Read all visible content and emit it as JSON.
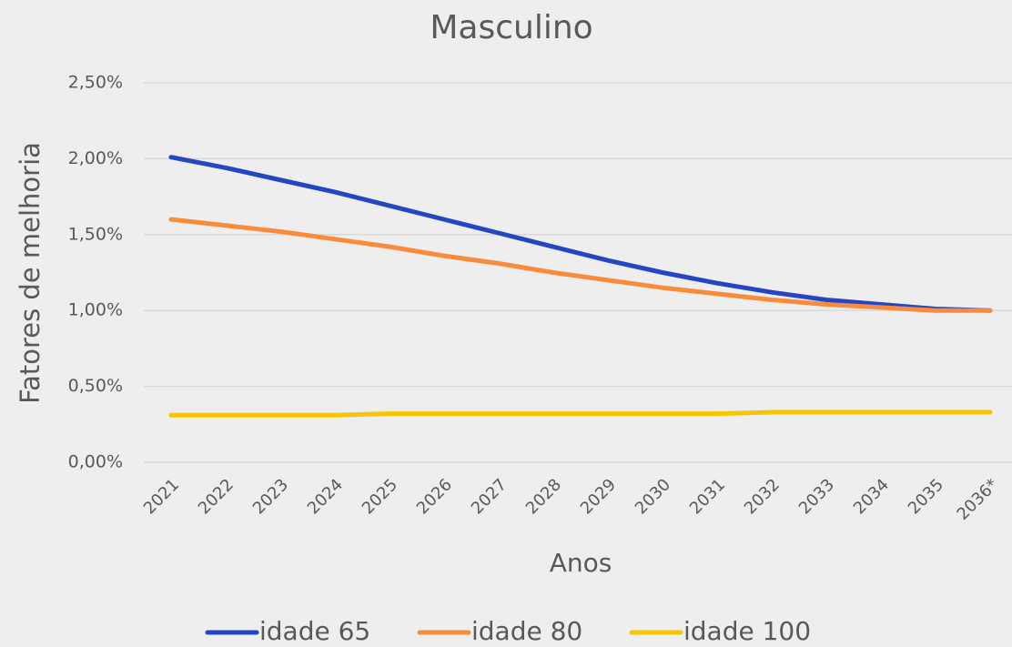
{
  "chart_data": {
    "type": "line",
    "title": "Masculino",
    "x_label": "Anos",
    "y_label": "Fatores de melhoria",
    "categories": [
      "2021",
      "2022",
      "2023",
      "2024",
      "2025",
      "2026",
      "2027",
      "2028",
      "2029",
      "2030",
      "2031",
      "2032",
      "2033",
      "2034",
      "2035",
      "2036*"
    ],
    "series": [
      {
        "name": "idade 65",
        "color": "#2446c4",
        "values": [
          2.01,
          1.94,
          1.86,
          1.78,
          1.69,
          1.6,
          1.51,
          1.42,
          1.33,
          1.25,
          1.18,
          1.12,
          1.07,
          1.04,
          1.01,
          1.0
        ]
      },
      {
        "name": "idade 80",
        "color": "#f98b3a",
        "values": [
          1.6,
          1.56,
          1.52,
          1.47,
          1.42,
          1.36,
          1.31,
          1.25,
          1.2,
          1.15,
          1.11,
          1.07,
          1.04,
          1.02,
          1.0,
          1.0
        ]
      },
      {
        "name": "idade 100",
        "color": "#f7c600",
        "values": [
          0.31,
          0.31,
          0.31,
          0.31,
          0.32,
          0.32,
          0.32,
          0.32,
          0.32,
          0.32,
          0.32,
          0.33,
          0.33,
          0.33,
          0.33,
          0.33
        ]
      }
    ],
    "ylim": [
      0,
      2.5
    ],
    "yticks": [
      {
        "value": 0,
        "label": "0,00%"
      },
      {
        "value": 0.5,
        "label": "0,50%"
      },
      {
        "value": 1,
        "label": "1,00%"
      },
      {
        "value": 1.5,
        "label": "1,50%"
      },
      {
        "value": 2,
        "label": "2,00%"
      },
      {
        "value": 2.5,
        "label": "2,50%"
      }
    ],
    "grid": true,
    "legend": "bottom"
  }
}
